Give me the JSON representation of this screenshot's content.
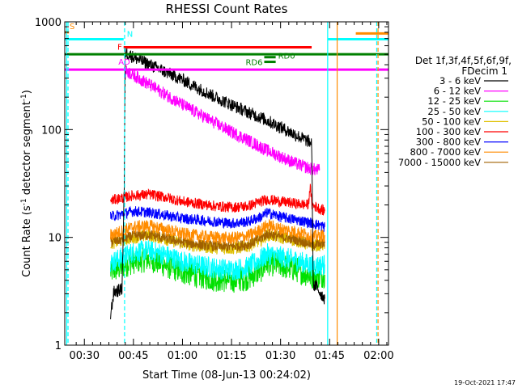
{
  "chart_data": {
    "type": "line",
    "title": "RHESSI Count Rates",
    "xlabel": "Start Time (08-Jun-13 00:24:02)",
    "ylabel_main": "Count Rate (s",
    "ylabel_sup1": "-1",
    "ylabel_mid": " detector segment",
    "ylabel_sup2": "-1",
    "ylabel_end": ")",
    "yscale": "log",
    "ylim": [
      1,
      1000
    ],
    "xlim_minutes": [
      24.0,
      123.0
    ],
    "x_ticks": [
      {
        "minute": 30,
        "label": "00:30"
      },
      {
        "minute": 45,
        "label": "00:45"
      },
      {
        "minute": 60,
        "label": "01:00"
      },
      {
        "minute": 75,
        "label": "01:15"
      },
      {
        "minute": 90,
        "label": "01:30"
      },
      {
        "minute": 105,
        "label": "01:45"
      },
      {
        "minute": 120,
        "label": "02:00"
      }
    ],
    "y_ticks": [
      {
        "value": 1,
        "label": "1"
      },
      {
        "value": 10,
        "label": "10"
      },
      {
        "value": 100,
        "label": "100"
      },
      {
        "value": 1000,
        "label": "1000"
      }
    ],
    "legend": {
      "header1": "Det 1f,3f,4f,5f,6f,9f,",
      "header2": "FDecim 1",
      "entries": [
        {
          "label": "3 - 6 keV",
          "color": "#000000"
        },
        {
          "label": "6 - 12 keV",
          "color": "#ff00ff"
        },
        {
          "label": "12 - 25 keV",
          "color": "#00e000"
        },
        {
          "label": "25 - 50 keV",
          "color": "#00ffff"
        },
        {
          "label": "50 - 100 keV",
          "color": "#e0c000"
        },
        {
          "label": "100 - 300 keV",
          "color": "#ff0000"
        },
        {
          "label": "300 - 800 keV",
          "color": "#0000ff"
        },
        {
          "label": "800 - 7000 keV",
          "color": "#ff8c00"
        },
        {
          "label": "7000 - 15000 keV",
          "color": "#a06000"
        }
      ]
    },
    "flag_bars": [
      {
        "label": "S",
        "color": "#ff8c00",
        "start": 24.0,
        "end": 25.3,
        "value": 800
      },
      {
        "label": "S",
        "color": "#ff8c00",
        "start": 113.0,
        "end": 123.0,
        "value": 780,
        "hide_label": true
      },
      {
        "label": "N",
        "color": "#00ffff",
        "start": 24.0,
        "end": 42.0,
        "value": 690
      },
      {
        "label": "N",
        "color": "#00ffff",
        "start": 104.5,
        "end": 123.0,
        "value": 690,
        "hide_label": true
      },
      {
        "label": "F",
        "color": "#ff0000",
        "start": 42.0,
        "end": 99.5,
        "value": 580
      },
      {
        "label": "",
        "color": "#008000",
        "start": 24.0,
        "end": 123.0,
        "value": 500
      },
      {
        "label": "RD0",
        "color": "#008000",
        "start": 85.0,
        "end": 88.5,
        "value": 470,
        "label_right": true
      },
      {
        "label": "RD6",
        "color": "#008000",
        "start": 85.0,
        "end": 88.5,
        "value": 425
      },
      {
        "label": "AD",
        "color": "#ff00ff",
        "start": 24.0,
        "end": 123.0,
        "value": 360
      }
    ],
    "vertical_lines": [
      {
        "minute": 24.6,
        "color": "#00ffff",
        "dashed": false
      },
      {
        "minute": 25.0,
        "color": "#00ffff",
        "dashed": true
      },
      {
        "minute": 42.3,
        "color": "#00ffff",
        "dashed": true
      },
      {
        "minute": 104.4,
        "color": "#00ffff",
        "dashed": false
      },
      {
        "minute": 107.3,
        "color": "#ff8c00",
        "dashed": false
      },
      {
        "minute": 119.4,
        "color": "#00ffff",
        "dashed": true
      },
      {
        "minute": 119.8,
        "color": "#ff8c00",
        "dashed": true
      }
    ],
    "series": [
      {
        "name": "3 - 6 keV",
        "color": "#000000",
        "noise": 0.06,
        "x": [
          38.0,
          39.0,
          41.5,
          42.2,
          42.5,
          43.5,
          45,
          50,
          55,
          60,
          65,
          70,
          75,
          80,
          85,
          90,
          95,
          99.5,
          100.0,
          101.0,
          102.0,
          103.5
        ],
        "y": [
          1.9,
          3.1,
          3.3,
          30,
          520,
          500,
          470,
          400,
          340,
          290,
          240,
          200,
          170,
          145,
          125,
          105,
          88,
          75,
          3.6,
          3.5,
          3.1,
          2.7
        ]
      },
      {
        "name": "6 - 12 keV",
        "color": "#ff00ff",
        "noise": 0.06,
        "x": [
          42.3,
          43.0,
          45,
          50,
          55,
          60,
          65,
          70,
          75,
          80,
          85,
          90,
          95,
          99.5,
          102.0
        ],
        "y": [
          320,
          350,
          320,
          260,
          210,
          170,
          140,
          115,
          95,
          80,
          66,
          56,
          48,
          43,
          42
        ]
      },
      {
        "name": "12 - 25 keV",
        "color": "#00e000",
        "noise": 0.12,
        "x": [
          38.0,
          45,
          50,
          55,
          60,
          65,
          70,
          75,
          80,
          84,
          86,
          90,
          95,
          100,
          103.5
        ],
        "y": [
          4.8,
          6.0,
          6.3,
          5.5,
          4.8,
          4.4,
          4.1,
          4.0,
          4.2,
          5.0,
          5.8,
          5.5,
          5.0,
          4.3,
          4.5
        ]
      },
      {
        "name": "25 - 50 keV",
        "color": "#00ffff",
        "noise": 0.1,
        "x": [
          38.0,
          45,
          50,
          55,
          60,
          65,
          70,
          75,
          80,
          84,
          86,
          90,
          95,
          100,
          103.5
        ],
        "y": [
          5.8,
          7.3,
          7.6,
          6.8,
          6.0,
          5.5,
          5.2,
          5.0,
          5.3,
          6.3,
          7.0,
          6.6,
          6.1,
          5.4,
          5.6
        ]
      },
      {
        "name": "50 - 100 keV",
        "color": "#e0c000",
        "noise": 0.06,
        "x": [
          38.0,
          45,
          50,
          55,
          60,
          65,
          70,
          75,
          80,
          84,
          86,
          90,
          95,
          100,
          103.5
        ],
        "y": [
          8.8,
          10.0,
          10.5,
          9.6,
          8.8,
          8.3,
          8.0,
          7.9,
          8.3,
          9.5,
          10.6,
          10.0,
          9.3,
          8.4,
          8.6
        ]
      },
      {
        "name": "100 - 300 keV",
        "color": "#ff0000",
        "noise": 0.05,
        "x": [
          38.0,
          45,
          50,
          55,
          60,
          65,
          70,
          75,
          80,
          84,
          86,
          90,
          95,
          98.5,
          99.0,
          99.6,
          103.5
        ],
        "y": [
          22,
          24.5,
          25,
          23.5,
          21.5,
          20.5,
          19.5,
          19.0,
          19.5,
          21.5,
          22.5,
          21.5,
          20.5,
          20,
          30,
          20,
          17.5
        ]
      },
      {
        "name": "300 - 800 keV",
        "color": "#0000ff",
        "noise": 0.05,
        "x": [
          38.0,
          45,
          50,
          55,
          60,
          65,
          70,
          75,
          80,
          84,
          86,
          90,
          95,
          100,
          103.5
        ],
        "y": [
          15.5,
          17.5,
          17.0,
          16.0,
          15.0,
          14.5,
          14.0,
          13.5,
          14.0,
          15.5,
          17.0,
          15.5,
          14.5,
          13.5,
          12.5
        ]
      },
      {
        "name": "800 - 7000 keV",
        "color": "#ff8c00",
        "noise": 0.06,
        "x": [
          38.0,
          45,
          50,
          55,
          60,
          65,
          70,
          75,
          80,
          84,
          86,
          90,
          95,
          100,
          103.5
        ],
        "y": [
          10.5,
          12.5,
          12.8,
          11.8,
          10.8,
          10.3,
          10.0,
          9.8,
          10.3,
          11.8,
          13.0,
          12.0,
          11.2,
          10.2,
          10.5
        ]
      },
      {
        "name": "7000 - 15000 keV",
        "color": "#a06000",
        "noise": 0.05,
        "x": [
          38.0,
          45,
          50,
          55,
          60,
          65,
          70,
          75,
          80,
          84,
          86,
          90,
          95,
          100,
          103.5
        ],
        "y": [
          9.0,
          10.3,
          10.6,
          9.8,
          9.0,
          8.6,
          8.3,
          8.2,
          8.6,
          9.8,
          10.8,
          10.2,
          9.5,
          8.6,
          8.8
        ]
      }
    ]
  },
  "timestamp": "19-Oct-2021 17:47"
}
